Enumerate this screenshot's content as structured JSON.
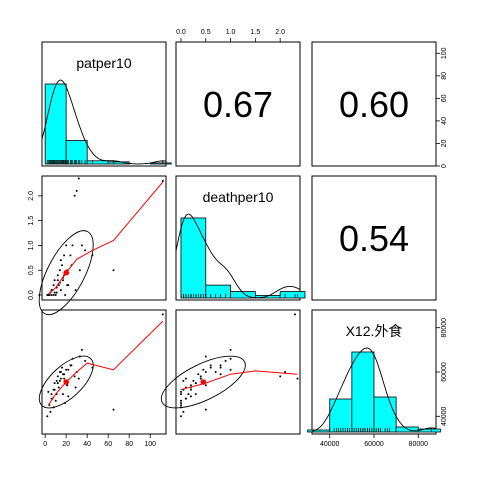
{
  "chart_data": {
    "type": "scatter",
    "variables": [
      "patper10",
      "deathper10",
      "X12.外食"
    ],
    "correlations": [
      {
        "row": 0,
        "col": 1,
        "label": "0.67"
      },
      {
        "row": 0,
        "col": 2,
        "label": "0.60"
      },
      {
        "row": 1,
        "col": 2,
        "label": "0.54"
      }
    ],
    "axes": {
      "patper10": {
        "lim": [
          -3,
          115
        ],
        "ticks": [
          0,
          20,
          40,
          60,
          80,
          100
        ],
        "tick_labels": [
          "0",
          "20",
          "40",
          "60",
          "80",
          "100"
        ]
      },
      "deathper10": {
        "lim": [
          -0.1,
          2.4
        ],
        "ticks": [
          0.0,
          0.5,
          1.0,
          1.5,
          2.0
        ],
        "tick_labels": [
          "0.0",
          "0.5",
          "1.0",
          "1.5",
          "2.0"
        ]
      },
      "X12": {
        "lim": [
          32000,
          88000
        ],
        "ticks": [
          40000,
          60000,
          80000
        ],
        "tick_labels": [
          "40000",
          "60000",
          "80000"
        ]
      },
      "hist_count": {
        "lim": [
          0,
          110
        ],
        "ticks": [
          0,
          20,
          40,
          60,
          80,
          100
        ],
        "tick_labels": [
          "0",
          "20",
          "40",
          "60",
          "80",
          "100"
        ]
      }
    },
    "histograms": {
      "patper10": {
        "bin_edges": [
          0,
          20,
          40,
          60,
          80,
          100,
          120
        ],
        "counts": [
          75,
          22,
          3,
          2,
          0,
          1
        ],
        "color": "#00FFFF"
      },
      "deathper10": {
        "bin_edges": [
          0.0,
          0.5,
          1.0,
          1.5,
          2.0,
          2.5
        ],
        "counts": [
          62,
          10,
          5,
          2,
          5
        ],
        "color": "#00FFFF"
      },
      "X12": {
        "bin_edges": [
          30000,
          40000,
          50000,
          60000,
          70000,
          80000,
          90000
        ],
        "counts": [
          2,
          33,
          80,
          35,
          5,
          3
        ],
        "color": "#00FFFF"
      }
    },
    "data": {
      "patper10": [
        2,
        4,
        5,
        6,
        7,
        8,
        9,
        10,
        11,
        12,
        13,
        14,
        15,
        16,
        17,
        18,
        19,
        20,
        21,
        22,
        24,
        26,
        28,
        30,
        32,
        35,
        38,
        45,
        65,
        112,
        3,
        6,
        9,
        12,
        15,
        18,
        21,
        25,
        29,
        33,
        8,
        11,
        14,
        17,
        22
      ],
      "deathper10": [
        0.0,
        0.0,
        0.05,
        0.0,
        0.1,
        0.2,
        0.3,
        0.0,
        0.05,
        0.4,
        0.2,
        0.5,
        0.1,
        0.6,
        0.3,
        0.8,
        0.0,
        1.0,
        0.5,
        0.2,
        0.8,
        1.0,
        2.0,
        2.1,
        2.35,
        1.0,
        0.9,
        0.8,
        0.5,
        2.3,
        0.0,
        0.1,
        0.05,
        0.3,
        0.7,
        0.4,
        0.2,
        0.6,
        0.1,
        0.5,
        0.0,
        0.15,
        0.25,
        0.35,
        0.45
      ],
      "X12": [
        40000,
        45000,
        42000,
        50000,
        48000,
        52000,
        55000,
        47000,
        56000,
        58000,
        53000,
        60000,
        57000,
        62000,
        50000,
        59000,
        46000,
        61000,
        54000,
        49000,
        63000,
        66000,
        58000,
        60000,
        57000,
        70000,
        65000,
        62000,
        43000,
        86000,
        51000,
        48000,
        52000,
        55000,
        60000,
        57000,
        54000,
        63000,
        53000,
        67000,
        44000,
        50000,
        56000,
        59000,
        61000
      ]
    },
    "means": {
      "patper10": 20.0,
      "deathper10": 0.45,
      "X12": 55500
    },
    "loess": {
      "patper10_deathper10": [
        [
          3,
          0.02
        ],
        [
          10,
          0.15
        ],
        [
          20,
          0.45
        ],
        [
          30,
          0.72
        ],
        [
          45,
          0.9
        ],
        [
          65,
          1.1
        ],
        [
          112,
          2.28
        ]
      ],
      "patper10_X12": [
        [
          3,
          45000
        ],
        [
          10,
          50000
        ],
        [
          20,
          55500
        ],
        [
          30,
          60000
        ],
        [
          40,
          64000
        ],
        [
          65,
          61000
        ],
        [
          112,
          83000
        ]
      ],
      "deathper10_X12": [
        [
          0.0,
          52000
        ],
        [
          0.5,
          55000
        ],
        [
          1.0,
          59000
        ],
        [
          1.5,
          60500
        ],
        [
          2.35,
          59000
        ]
      ]
    },
    "density_peak": {
      "patper10": 20,
      "deathper10": 0.3,
      "X12": 56000
    }
  }
}
